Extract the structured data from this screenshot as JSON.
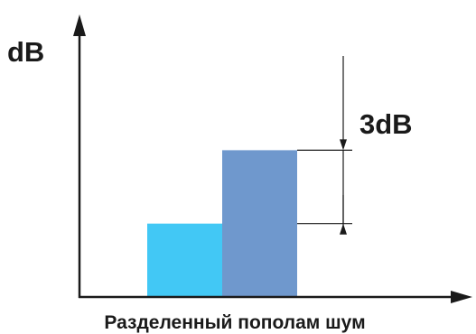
{
  "chart_data": {
    "type": "bar",
    "categories": [
      "",
      ""
    ],
    "values": [
      3,
      6
    ],
    "ylabel": "dB",
    "xlabel": "Разделенный пополам шум",
    "ylim": [
      0,
      10
    ],
    "grid": false,
    "legend": "none",
    "annotations": [
      {
        "text": "3dB",
        "from": 3,
        "to": 6
      }
    ],
    "colors": [
      "#42c8f5",
      "#6f98cd"
    ]
  },
  "colors": {
    "axis": "#1a1a1a",
    "guide": "#1a1a1a"
  }
}
